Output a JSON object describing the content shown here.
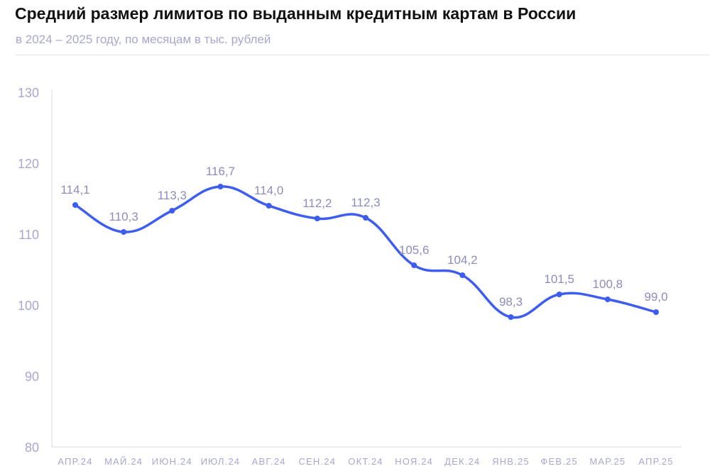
{
  "chart_data": {
    "type": "line",
    "title": "Средний размер лимитов по выданным кредитным картам в России",
    "subtitle": "в 2024 – 2025 году, по месяцам в тыс. рублей",
    "xlabel": "",
    "ylabel": "",
    "ylim": [
      80,
      130
    ],
    "yticks": [
      80,
      90,
      100,
      110,
      120,
      130
    ],
    "grid": false,
    "categories": [
      "АПР.24",
      "МАЙ.24",
      "ИЮН.24",
      "ИЮЛ.24",
      "АВГ.24",
      "СЕН.24",
      "ОКТ.24",
      "НОЯ.24",
      "ДЕК.24",
      "ЯНВ.25",
      "ФЕВ.25",
      "МАР.25",
      "АПР.25"
    ],
    "series": [
      {
        "values": [
          114.1,
          110.3,
          113.3,
          116.7,
          114.0,
          112.2,
          112.3,
          105.6,
          104.2,
          98.3,
          101.5,
          100.8,
          99.0
        ],
        "labels": [
          "114,1",
          "110,3",
          "113,3",
          "116,7",
          "114,0",
          "112,2",
          "112,3",
          "105,6",
          "104,2",
          "98,3",
          "101,5",
          "100,8",
          "99,0"
        ]
      }
    ],
    "colors": {
      "line": "#3d5cf0",
      "labels": "#8c8cbd",
      "axis_text": "#a7a7cf",
      "axis": "#d9d9e6"
    }
  }
}
